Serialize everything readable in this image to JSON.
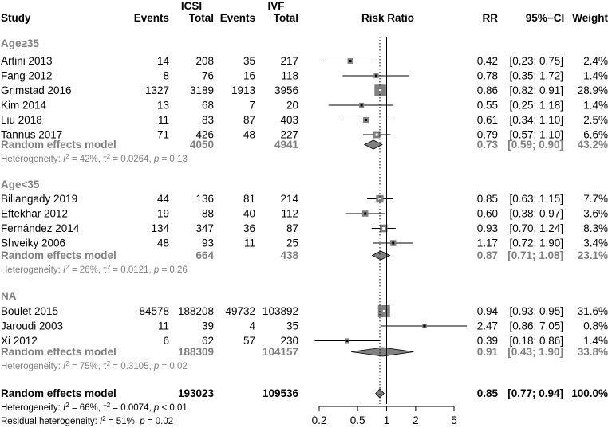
{
  "headers": {
    "study": "Study",
    "icsi_group": "ICSI",
    "ivf_group": "IVF",
    "icsi_events": "Events",
    "icsi_total": "Total",
    "ivf_events": "Events",
    "ivf_total": "Total",
    "plot": "Risk Ratio",
    "rr": "RR",
    "ci": "95%−CI",
    "weight": "Weight"
  },
  "chart_data": {
    "type": "forest",
    "xaxis": {
      "scale": "log",
      "ticks": [
        0.2,
        0.5,
        1,
        2,
        5
      ],
      "tick_labels": [
        "0.2",
        "0.5",
        "1",
        "2",
        "5"
      ],
      "xlim": [
        0.2,
        5
      ],
      "reference_line": 1,
      "dotted_line": 0.85
    },
    "colors": {
      "square": "#808080",
      "diamond": "#808080",
      "subgroup_text": "#7f7f7f"
    },
    "groups": [
      {
        "name": "Age≥35",
        "studies": [
          {
            "study": "Artini 2013",
            "e1": "14",
            "n1": "208",
            "e2": "35",
            "n2": "217",
            "rr": 0.42,
            "lo": 0.23,
            "hi": 0.75,
            "weight": 2.4,
            "rr_text": "0.42",
            "ci_text": "[0.23; 0.75]",
            "w_text": "2.4%"
          },
          {
            "study": "Fang 2012",
            "e1": "8",
            "n1": "76",
            "e2": "16",
            "n2": "118",
            "rr": 0.78,
            "lo": 0.35,
            "hi": 1.72,
            "weight": 1.4,
            "rr_text": "0.78",
            "ci_text": "[0.35; 1.72]",
            "w_text": "1.4%"
          },
          {
            "study": "Grimstad 2016",
            "e1": "1327",
            "n1": "3189",
            "e2": "1913",
            "n2": "3956",
            "rr": 0.86,
            "lo": 0.82,
            "hi": 0.91,
            "weight": 28.9,
            "rr_text": "0.86",
            "ci_text": "[0.82; 0.91]",
            "w_text": "28.9%"
          },
          {
            "study": "Kim 2014",
            "e1": "13",
            "n1": "68",
            "e2": "7",
            "n2": "20",
            "rr": 0.55,
            "lo": 0.25,
            "hi": 1.18,
            "weight": 1.4,
            "rr_text": "0.55",
            "ci_text": "[0.25; 1.18]",
            "w_text": "1.4%"
          },
          {
            "study": "Liu 2018",
            "e1": "11",
            "n1": "83",
            "e2": "87",
            "n2": "403",
            "rr": 0.61,
            "lo": 0.34,
            "hi": 1.1,
            "weight": 2.5,
            "rr_text": "0.61",
            "ci_text": "[0.34; 1.10]",
            "w_text": "2.5%"
          },
          {
            "study": "Tannus 2017",
            "e1": "71",
            "n1": "426",
            "e2": "48",
            "n2": "227",
            "rr": 0.79,
            "lo": 0.57,
            "hi": 1.1,
            "weight": 6.6,
            "rr_text": "0.79",
            "ci_text": "[0.57; 1.10]",
            "w_text": "6.6%"
          }
        ],
        "pooled": {
          "label": "Random effects model",
          "n1": "4050",
          "n2": "4941",
          "rr": 0.73,
          "lo": 0.59,
          "hi": 0.9,
          "rr_text": "0.73",
          "ci_text": "[0.59; 0.90]",
          "w_text": "43.2%"
        },
        "het": {
          "prefix": "Heterogeneity: ",
          "i2": "= 42%, ",
          "tau": "= 0.0264, ",
          "p": "= 0.13"
        }
      },
      {
        "name": "Age<35",
        "studies": [
          {
            "study": "Biliangady 2019",
            "e1": "44",
            "n1": "136",
            "e2": "81",
            "n2": "214",
            "rr": 0.85,
            "lo": 0.63,
            "hi": 1.15,
            "weight": 7.7,
            "rr_text": "0.85",
            "ci_text": "[0.63; 1.15]",
            "w_text": "7.7%"
          },
          {
            "study": "Eftekhar 2012",
            "e1": "19",
            "n1": "88",
            "e2": "40",
            "n2": "112",
            "rr": 0.6,
            "lo": 0.38,
            "hi": 0.97,
            "weight": 3.6,
            "rr_text": "0.60",
            "ci_text": "[0.38; 0.97]",
            "w_text": "3.6%"
          },
          {
            "study": "Fernández 2014",
            "e1": "134",
            "n1": "347",
            "e2": "36",
            "n2": "87",
            "rr": 0.93,
            "lo": 0.7,
            "hi": 1.24,
            "weight": 8.3,
            "rr_text": "0.93",
            "ci_text": "[0.70; 1.24]",
            "w_text": "8.3%"
          },
          {
            "study": "Shveiky 2006",
            "e1": "48",
            "n1": "93",
            "e2": "11",
            "n2": "25",
            "rr": 1.17,
            "lo": 0.72,
            "hi": 1.9,
            "weight": 3.4,
            "rr_text": "1.17",
            "ci_text": "[0.72; 1.90]",
            "w_text": "3.4%"
          }
        ],
        "pooled": {
          "label": "Random effects model",
          "n1": "664",
          "n2": "438",
          "rr": 0.87,
          "lo": 0.71,
          "hi": 1.08,
          "rr_text": "0.87",
          "ci_text": "[0.71; 1.08]",
          "w_text": "23.1%"
        },
        "het": {
          "prefix": "Heterogeneity: ",
          "i2": "= 26%, ",
          "tau": "= 0.0121, ",
          "p": "= 0.26"
        }
      },
      {
        "name": "NA",
        "studies": [
          {
            "study": "Boulet 2015",
            "e1": "84578",
            "n1": "188208",
            "e2": "49732",
            "n2": "103892",
            "rr": 0.94,
            "lo": 0.93,
            "hi": 0.95,
            "weight": 31.6,
            "rr_text": "0.94",
            "ci_text": "[0.93; 0.95]",
            "w_text": "31.6%"
          },
          {
            "study": "Jaroudi 2003",
            "e1": "11",
            "n1": "39",
            "e2": "4",
            "n2": "35",
            "rr": 2.47,
            "lo": 0.86,
            "hi": 7.05,
            "weight": 0.8,
            "rr_text": "2.47",
            "ci_text": "[0.86; 7.05]",
            "w_text": "0.8%"
          },
          {
            "study": "Xi 2012",
            "e1": "6",
            "n1": "62",
            "e2": "57",
            "n2": "230",
            "rr": 0.39,
            "lo": 0.18,
            "hi": 0.86,
            "weight": 1.4,
            "rr_text": "0.39",
            "ci_text": "[0.18; 0.86]",
            "w_text": "1.4%"
          }
        ],
        "pooled": {
          "label": "Random effects model",
          "n1": "188309",
          "n2": "104157",
          "rr": 0.91,
          "lo": 0.43,
          "hi": 1.9,
          "rr_text": "0.91",
          "ci_text": "[0.43; 1.90]",
          "w_text": "33.8%"
        },
        "het": {
          "prefix": "Heterogeneity: ",
          "i2": "= 75%, ",
          "tau": "= 0.3105, ",
          "p": "= 0.02"
        }
      }
    ],
    "overall": {
      "label": "Random effects model",
      "n1": "193023",
      "n2": "109536",
      "rr": 0.85,
      "lo": 0.77,
      "hi": 0.94,
      "rr_text": "0.85",
      "ci_text": "[0.77; 0.94]",
      "w_text": "100.0%"
    },
    "overall_het": {
      "prefix": "Heterogeneity: ",
      "i2": "= 66%, ",
      "tau": "= 0.0074, ",
      "p": "< 0.01"
    },
    "residual_het": {
      "prefix": "Residual heterogeneity: ",
      "i2": "= 51%, ",
      "p": "= 0.02"
    }
  }
}
